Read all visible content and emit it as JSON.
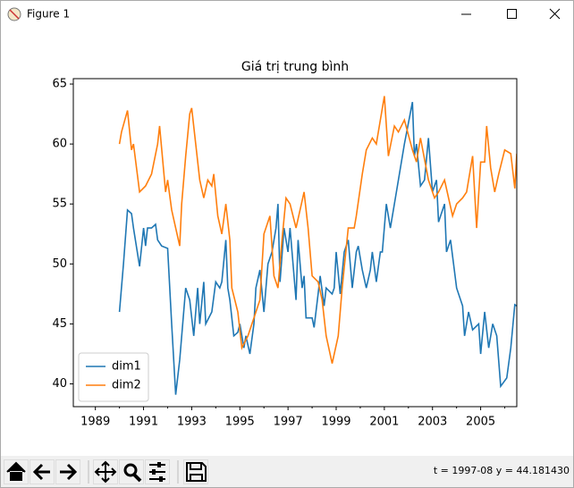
{
  "window": {
    "title": "Figure 1",
    "status": "t = 1997-08  y = 44.181430"
  },
  "chart_data": {
    "type": "line",
    "title": "Giá trị trung bình",
    "xlim": [
      "1988-02",
      "2006-07"
    ],
    "xticks": [
      "1989",
      "1991",
      "1993",
      "1995",
      "1997",
      "1999",
      "2001",
      "2003",
      "2005"
    ],
    "xminor_ticks": [
      "1990",
      "1992",
      "1994",
      "1996",
      "1998",
      "2000",
      "2002",
      "2004",
      "2006"
    ],
    "ylim": [
      38.1,
      65.45
    ],
    "yticks": [
      40,
      45,
      50,
      55,
      60,
      65
    ],
    "legend": "lower left",
    "series": [
      {
        "name": "dim1",
        "color": "#1f77b4",
        "x": [
          "1990-01",
          "1990-03",
          "1990-05",
          "1990-07",
          "1990-08",
          "1990-11",
          "1991-01",
          "1991-02",
          "1991-03",
          "1991-05",
          "1991-07",
          "1991-08",
          "1991-10",
          "1992-01",
          "1992-03",
          "1992-05",
          "1992-07",
          "1992-10",
          "1992-12",
          "1993-02",
          "1993-04",
          "1993-05",
          "1993-07",
          "1993-08",
          "1993-11",
          "1994-01",
          "1994-03",
          "1994-04",
          "1994-06",
          "1994-07",
          "1994-08",
          "1994-10",
          "1994-12",
          "1995-01",
          "1995-03",
          "1995-04",
          "1995-06",
          "1995-08",
          "1995-09",
          "1995-11",
          "1996-01",
          "1996-03",
          "1996-05",
          "1996-07",
          "1996-08",
          "1996-09",
          "1996-11",
          "1997-01",
          "1997-02",
          "1997-05",
          "1997-06",
          "1997-08",
          "1997-09",
          "1997-10",
          "1998-01",
          "1998-02",
          "1998-04",
          "1998-05",
          "1998-07",
          "1998-08",
          "1998-11",
          "1998-12",
          "1999-01",
          "1999-03",
          "1999-05",
          "1999-07",
          "1999-09",
          "1999-11",
          "1999-12",
          "2000-02",
          "2000-04",
          "2000-06",
          "2000-07",
          "2000-09",
          "2000-11",
          "2000-12",
          "2001-02",
          "2001-04",
          "2001-06",
          "2001-08",
          "2001-11",
          "2002-03",
          "2002-04",
          "2002-05",
          "2002-07",
          "2002-09",
          "2002-11",
          "2003-01",
          "2003-03",
          "2003-04",
          "2003-07",
          "2003-08",
          "2003-10",
          "2004-01",
          "2004-04",
          "2004-05",
          "2004-07",
          "2004-09",
          "2004-12",
          "2005-01",
          "2005-03",
          "2005-05",
          "2005-07",
          "2005-09",
          "2005-11",
          "2006-02",
          "2006-04",
          "2006-06",
          "2006-07"
        ],
        "values": [
          46,
          50,
          54.5,
          54.2,
          53,
          49.8,
          53,
          51.5,
          53,
          53,
          53.3,
          52,
          51.5,
          51.3,
          45,
          39.1,
          42,
          48,
          47,
          44,
          48,
          45,
          48.5,
          45,
          46,
          48.5,
          48,
          48.5,
          52,
          48,
          47,
          44,
          44.3,
          45,
          43,
          44,
          42.5,
          45,
          48,
          49.5,
          46,
          50,
          51,
          53,
          55,
          48.5,
          53,
          51,
          53,
          47,
          52,
          48,
          49,
          45.5,
          45.5,
          44.7,
          47.5,
          49,
          46.5,
          48,
          47.5,
          48,
          51,
          47.5,
          51,
          52,
          48,
          51,
          51.5,
          49.5,
          48,
          49.5,
          51,
          48.5,
          51,
          51,
          55,
          53,
          55,
          57,
          60,
          63.5,
          59,
          60,
          56.5,
          57,
          60.5,
          56,
          57,
          53.5,
          55,
          51,
          52,
          48,
          46.5,
          44,
          46,
          44.5,
          45,
          42.5,
          46,
          43,
          45,
          44,
          39.8,
          40.5,
          43,
          46.6,
          46.5
        ]
      },
      {
        "name": "dim2",
        "color": "#ff7f0e",
        "x": [
          "1990-01",
          "1990-02",
          "1990-05",
          "1990-07",
          "1990-08",
          "1990-11",
          "1991-02",
          "1991-05",
          "1991-08",
          "1991-09",
          "1991-12",
          "1992-01",
          "1992-03",
          "1992-05",
          "1992-07",
          "1992-08",
          "1992-10",
          "1992-12",
          "1993-01",
          "1993-03",
          "1993-05",
          "1993-07",
          "1993-09",
          "1993-11",
          "1993-12",
          "1994-02",
          "1994-04",
          "1994-06",
          "1994-08",
          "1994-09",
          "1994-12",
          "1995-02",
          "1995-05",
          "1995-08",
          "1995-11",
          "1996-01",
          "1996-04",
          "1996-06",
          "1996-08",
          "1996-10",
          "1996-12",
          "1997-02",
          "1997-05",
          "1997-09",
          "1997-11",
          "1998-01",
          "1998-04",
          "1998-06",
          "1998-08",
          "1998-11",
          "1999-02",
          "1999-04",
          "1999-07",
          "1999-10",
          "1999-11",
          "2000-02",
          "2000-04",
          "2000-07",
          "2000-09",
          "2001-01",
          "2001-03",
          "2001-06",
          "2001-08",
          "2001-11",
          "2002-03",
          "2002-05",
          "2002-07",
          "2002-11",
          "2003-02",
          "2003-04",
          "2003-07",
          "2003-11",
          "2004-01",
          "2004-04",
          "2004-06",
          "2004-09",
          "2004-11",
          "2005-01",
          "2005-03",
          "2005-04",
          "2005-06",
          "2005-08",
          "2005-10",
          "2006-01",
          "2006-04",
          "2006-06",
          "2006-07"
        ],
        "values": [
          60,
          61,
          62.8,
          59.5,
          60,
          56,
          56.5,
          57.5,
          60,
          61.5,
          56,
          57,
          54.5,
          53,
          51.5,
          55,
          59,
          62.5,
          63,
          60,
          57,
          55.5,
          57,
          56.5,
          57.5,
          54,
          52.5,
          55,
          52,
          48,
          46,
          43,
          44,
          45.5,
          47,
          52.5,
          54,
          49,
          48,
          52,
          55.5,
          55,
          53,
          56,
          53,
          49,
          48.5,
          47,
          44,
          41.7,
          44,
          48,
          53,
          53,
          54,
          57.5,
          59.5,
          60.5,
          60,
          64,
          59,
          61.5,
          61,
          62,
          59.5,
          58.5,
          60.5,
          57,
          55.5,
          56,
          57,
          54,
          55,
          55.5,
          56,
          59,
          53,
          58.5,
          58.5,
          61.5,
          58,
          56,
          57.5,
          59.5,
          59.2,
          56.3,
          59.2
        ]
      }
    ]
  }
}
